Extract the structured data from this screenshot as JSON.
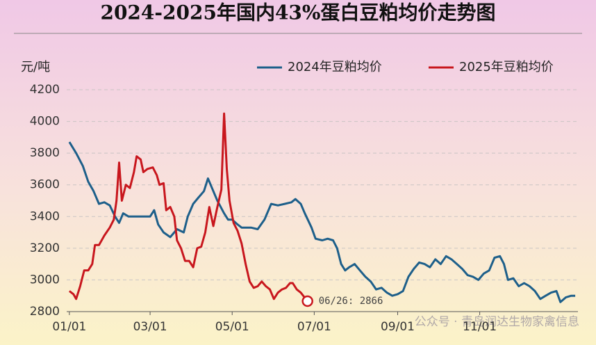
{
  "chart_data": {
    "type": "line",
    "title": "2024-2025年国内43%蛋白豆粕均价走势图",
    "y_label": "元/吨",
    "annotation": "06/26: 2866",
    "watermark": "公众号 · 青岛润达生物家禽信息",
    "legend": "top-right",
    "grid": true,
    "xlim": [
      -2,
      378
    ],
    "xticks": [
      {
        "value": 0,
        "label": "01/01"
      },
      {
        "value": 60,
        "label": "03/01"
      },
      {
        "value": 121,
        "label": "05/01"
      },
      {
        "value": 182,
        "label": "07/01"
      },
      {
        "value": 244,
        "label": "09/01"
      },
      {
        "value": 305,
        "label": "11/01"
      }
    ],
    "ylim": [
      2800,
      4200
    ],
    "yticks": [
      2800,
      3000,
      3200,
      3400,
      3600,
      3800,
      4000,
      4200
    ],
    "series": [
      {
        "name": "2024年豆粕均价",
        "color": "#1d5f8a",
        "x": [
          0,
          5,
          10,
          14,
          18,
          22,
          26,
          30,
          34,
          37,
          40,
          44,
          50,
          56,
          60,
          63,
          66,
          70,
          75,
          80,
          85,
          88,
          92,
          96,
          100,
          103,
          107,
          110,
          115,
          118,
          121,
          125,
          128,
          135,
          140,
          145,
          150,
          155,
          160,
          165,
          168,
          172,
          175,
          180,
          183,
          188,
          192,
          196,
          199,
          202,
          205,
          208,
          212,
          216,
          220,
          224,
          228,
          232,
          236,
          240,
          244,
          248,
          252,
          256,
          260,
          264,
          268,
          272,
          276,
          280,
          284,
          288,
          292,
          296,
          300,
          304,
          308,
          312,
          316,
          320,
          323,
          326,
          330,
          334,
          338,
          342,
          346,
          350,
          354,
          358,
          362,
          365,
          369,
          373,
          376
        ],
        "values": [
          3870,
          3800,
          3720,
          3620,
          3560,
          3480,
          3490,
          3470,
          3400,
          3360,
          3420,
          3400,
          3400,
          3400,
          3400,
          3440,
          3350,
          3300,
          3270,
          3320,
          3300,
          3400,
          3480,
          3520,
          3560,
          3640,
          3560,
          3500,
          3420,
          3380,
          3380,
          3350,
          3330,
          3330,
          3320,
          3380,
          3480,
          3470,
          3480,
          3490,
          3510,
          3480,
          3420,
          3330,
          3260,
          3250,
          3260,
          3250,
          3200,
          3100,
          3060,
          3080,
          3100,
          3060,
          3020,
          2990,
          2940,
          2950,
          2920,
          2900,
          2910,
          2930,
          3020,
          3070,
          3110,
          3100,
          3080,
          3130,
          3100,
          3150,
          3130,
          3100,
          3070,
          3030,
          3020,
          3000,
          3040,
          3060,
          3140,
          3150,
          3100,
          3000,
          3010,
          2960,
          2980,
          2960,
          2930,
          2880,
          2900,
          2920,
          2930,
          2860,
          2890,
          2900,
          2900
        ]
      },
      {
        "name": "2025年豆粕均价",
        "color": "#c8161d",
        "x": [
          0,
          3,
          5,
          8,
          11,
          14,
          17,
          19,
          22,
          26,
          30,
          33,
          35,
          37,
          39,
          42,
          45,
          48,
          50,
          53,
          55,
          58,
          62,
          65,
          67,
          70,
          72,
          75,
          78,
          80,
          83,
          86,
          89,
          92,
          95,
          98,
          101,
          104,
          107,
          110,
          113,
          115,
          117,
          119,
          122,
          125,
          128,
          131,
          134,
          137,
          140,
          143,
          146,
          149,
          152,
          155,
          158,
          161,
          164,
          166,
          169,
          172,
          177
        ],
        "values": [
          2930,
          2910,
          2880,
          2960,
          3060,
          3060,
          3100,
          3220,
          3220,
          3280,
          3330,
          3380,
          3500,
          3740,
          3500,
          3600,
          3580,
          3680,
          3780,
          3760,
          3680,
          3700,
          3710,
          3660,
          3600,
          3610,
          3440,
          3460,
          3400,
          3250,
          3200,
          3120,
          3120,
          3080,
          3200,
          3210,
          3300,
          3460,
          3340,
          3460,
          3570,
          4050,
          3700,
          3500,
          3360,
          3310,
          3230,
          3100,
          2990,
          2950,
          2960,
          2990,
          2960,
          2940,
          2880,
          2920,
          2940,
          2950,
          2980,
          2980,
          2940,
          2920,
          2866
        ]
      }
    ]
  }
}
